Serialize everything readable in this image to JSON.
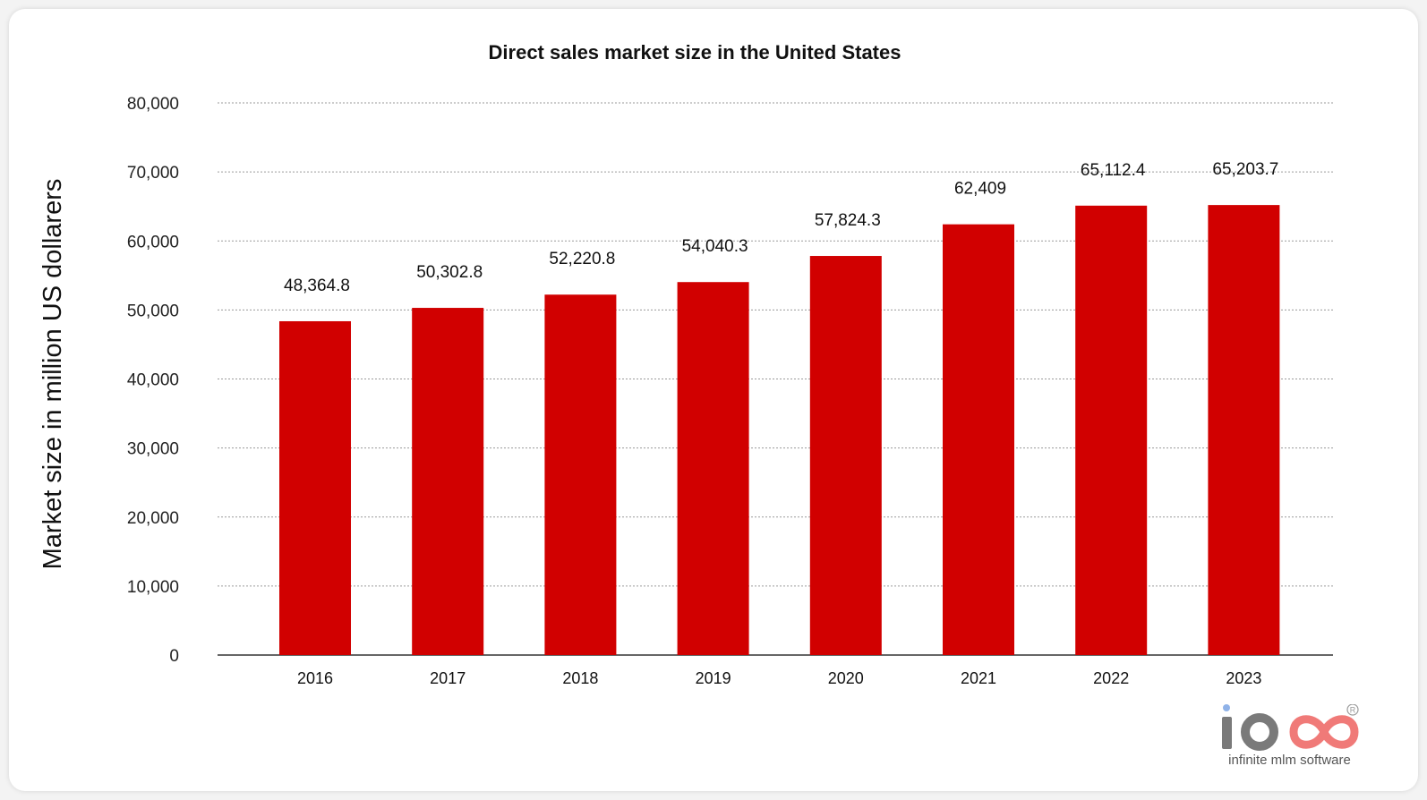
{
  "chart_data": {
    "type": "bar",
    "title": "Direct sales market size in the United States",
    "xlabel": "",
    "ylabel": "Market size in million US dollarers",
    "categories": [
      "2016",
      "2017",
      "2018",
      "2019",
      "2020",
      "2021",
      "2022",
      "2023"
    ],
    "values": [
      48364.8,
      50302.8,
      52220.8,
      54040.3,
      57824.3,
      62409,
      65112.4,
      65203.7
    ],
    "value_labels": [
      "48,364.8",
      "50,302.8",
      "52,220.8",
      "54,040.3",
      "57,824.3",
      "62,409",
      "65,112.4",
      "65,203.7"
    ],
    "ylim": [
      0,
      80000
    ],
    "yticks": [
      0,
      10000,
      20000,
      30000,
      40000,
      50000,
      60000,
      70000,
      80000
    ],
    "ytick_labels": [
      "0",
      "10,000",
      "20,000",
      "30,000",
      "40,000",
      "50,000",
      "60,000",
      "70,000",
      "80,000"
    ],
    "grid": true,
    "bar_color": "#d10000"
  },
  "logo": {
    "tagline": "infinite mlm software",
    "colors": {
      "primary": "#7a7a7a",
      "accent": "#f07a78",
      "dot": "#8fb2e8"
    }
  }
}
